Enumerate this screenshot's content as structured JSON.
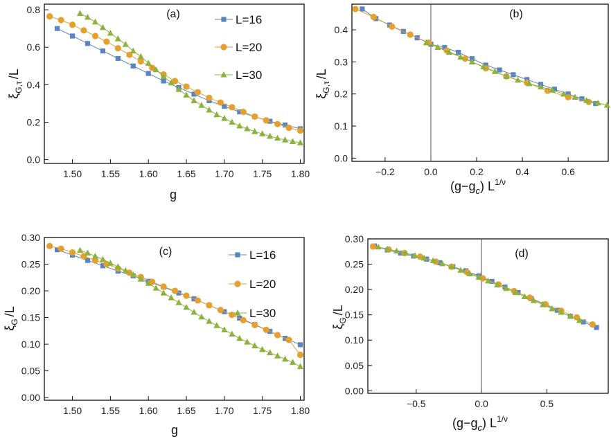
{
  "colors": {
    "L16": "#5b84c4",
    "L20": "#e6a030",
    "L30": "#8db33e",
    "frame": "#111111"
  },
  "chart_data": [
    {
      "panel": "(a)",
      "type": "scatter",
      "xlabel": "g",
      "ylabel": "ξG,τ /L",
      "ylabel_main": "ξ",
      "ylabel_sub": "G,τ",
      "ylabel_tail": "/L",
      "xlim": [
        1.463,
        1.805
      ],
      "ylim": [
        -0.02,
        0.83
      ],
      "xticks": [
        1.5,
        1.55,
        1.6,
        1.65,
        1.7,
        1.75,
        1.8
      ],
      "xtick_labels": [
        "1.50",
        "1.55",
        "1.60",
        "1.65",
        "1.70",
        "1.75",
        "1.80"
      ],
      "yticks": [
        0.0,
        0.2,
        0.4,
        0.6,
        0.8
      ],
      "ytick_labels": [
        "0.0",
        "0.2",
        "0.4",
        "0.6",
        "0.8"
      ],
      "legend": "top-right",
      "series": [
        {
          "name": "L=16",
          "marker": "square",
          "color": "#5b84c4",
          "x": [
            1.48,
            1.5,
            1.52,
            1.54,
            1.56,
            1.58,
            1.6,
            1.62,
            1.64,
            1.66,
            1.68,
            1.7,
            1.72,
            1.74,
            1.76,
            1.78,
            1.8
          ],
          "y": [
            0.7,
            0.66,
            0.62,
            0.58,
            0.54,
            0.5,
            0.46,
            0.42,
            0.385,
            0.35,
            0.315,
            0.285,
            0.255,
            0.23,
            0.205,
            0.185,
            0.165
          ]
        },
        {
          "name": "L=20",
          "marker": "circle",
          "color": "#e6a030",
          "x": [
            1.47,
            1.485,
            1.5,
            1.515,
            1.53,
            1.545,
            1.56,
            1.575,
            1.59,
            1.605,
            1.62,
            1.635,
            1.65,
            1.665,
            1.68,
            1.695,
            1.71,
            1.725,
            1.74,
            1.755,
            1.77,
            1.785,
            1.8
          ],
          "y": [
            0.765,
            0.745,
            0.72,
            0.69,
            0.66,
            0.63,
            0.595,
            0.56,
            0.525,
            0.49,
            0.455,
            0.42,
            0.39,
            0.36,
            0.33,
            0.305,
            0.28,
            0.255,
            0.23,
            0.21,
            0.19,
            0.17,
            0.155
          ]
        },
        {
          "name": "L=30",
          "marker": "triangle",
          "color": "#8db33e",
          "x": [
            1.51,
            1.52,
            1.53,
            1.54,
            1.55,
            1.56,
            1.57,
            1.58,
            1.59,
            1.6,
            1.61,
            1.62,
            1.63,
            1.64,
            1.65,
            1.66,
            1.67,
            1.68,
            1.69,
            1.7,
            1.71,
            1.72,
            1.73,
            1.74,
            1.75,
            1.76,
            1.77,
            1.78,
            1.79,
            1.8
          ],
          "y": [
            0.78,
            0.76,
            0.735,
            0.705,
            0.675,
            0.645,
            0.615,
            0.58,
            0.55,
            0.515,
            0.48,
            0.445,
            0.41,
            0.375,
            0.345,
            0.315,
            0.29,
            0.265,
            0.24,
            0.22,
            0.2,
            0.18,
            0.165,
            0.15,
            0.138,
            0.125,
            0.115,
            0.105,
            0.097,
            0.09
          ]
        }
      ]
    },
    {
      "panel": "(b)",
      "type": "scatter",
      "xlabel": "(g−gc) L1/ν",
      "xlabel_pre": "(g−g",
      "xlabel_sub": "c",
      "xlabel_mid": ") L",
      "xlabel_sup": "1/ν",
      "ylabel": "ξG,τ /L",
      "ylabel_main": "ξ",
      "ylabel_sub": "G,τ",
      "ylabel_tail": "/L",
      "xlim": [
        -0.345,
        0.775
      ],
      "ylim": [
        -0.01,
        0.48
      ],
      "vline": 0.0,
      "xticks": [
        -0.2,
        0.0,
        0.2,
        0.4,
        0.6
      ],
      "xtick_labels": [
        "−0.2",
        "0.0",
        "0.2",
        "0.4",
        "0.6"
      ],
      "yticks": [
        0.0,
        0.1,
        0.2,
        0.3,
        0.4
      ],
      "ytick_labels": [
        "0.0",
        "0.1",
        "0.2",
        "0.3",
        "0.4"
      ],
      "series": [
        {
          "name": "L=16",
          "marker": "square",
          "color": "#5b84c4",
          "x": [
            -0.3,
            -0.24,
            -0.18,
            -0.12,
            -0.06,
            0.0,
            0.06,
            0.12,
            0.18,
            0.24,
            0.3,
            0.36,
            0.42,
            0.48,
            0.54,
            0.6,
            0.66,
            0.72
          ],
          "y": [
            0.465,
            0.435,
            0.415,
            0.395,
            0.375,
            0.355,
            0.345,
            0.33,
            0.31,
            0.29,
            0.275,
            0.26,
            0.245,
            0.23,
            0.215,
            0.2,
            0.185,
            0.17
          ]
        },
        {
          "name": "L=20",
          "marker": "circle",
          "color": "#e6a030",
          "x": [
            -0.33,
            -0.25,
            -0.17,
            -0.09,
            -0.01,
            0.07,
            0.15,
            0.24,
            0.33,
            0.42,
            0.51,
            0.6,
            0.69
          ],
          "y": [
            0.465,
            0.44,
            0.41,
            0.385,
            0.36,
            0.335,
            0.31,
            0.28,
            0.255,
            0.235,
            0.21,
            0.19,
            0.175
          ]
        },
        {
          "name": "L=30",
          "marker": "triangle",
          "color": "#8db33e",
          "x": [
            -0.02,
            0.03,
            0.08,
            0.13,
            0.18,
            0.23,
            0.28,
            0.33,
            0.38,
            0.43,
            0.48,
            0.53,
            0.58,
            0.63,
            0.68,
            0.73,
            0.77
          ],
          "y": [
            0.36,
            0.345,
            0.33,
            0.315,
            0.3,
            0.285,
            0.27,
            0.255,
            0.243,
            0.232,
            0.222,
            0.212,
            0.2,
            0.19,
            0.18,
            0.172,
            0.165
          ]
        }
      ]
    },
    {
      "panel": "(c)",
      "type": "scatter",
      "xlabel": "g",
      "ylabel": "ξG /L",
      "ylabel_main": "ξ",
      "ylabel_sub": "G",
      "ylabel_tail": "/L",
      "xlim": [
        1.463,
        1.805
      ],
      "ylim": [
        -0.005,
        0.3
      ],
      "xticks": [
        1.5,
        1.55,
        1.6,
        1.65,
        1.7,
        1.75,
        1.8
      ],
      "xtick_labels": [
        "1.50",
        "1.55",
        "1.60",
        "1.65",
        "1.70",
        "1.75",
        "1.80"
      ],
      "yticks": [
        0.0,
        0.05,
        0.1,
        0.15,
        0.2,
        0.25,
        0.3
      ],
      "ytick_labels": [
        "0.00",
        "0.05",
        "0.10",
        "0.15",
        "0.20",
        "0.25",
        "0.30"
      ],
      "legend": "top-right",
      "series": [
        {
          "name": "L=16",
          "marker": "square",
          "color": "#5b84c4",
          "x": [
            1.48,
            1.5,
            1.52,
            1.54,
            1.56,
            1.58,
            1.6,
            1.62,
            1.64,
            1.66,
            1.68,
            1.7,
            1.72,
            1.74,
            1.76,
            1.78,
            1.8
          ],
          "y": [
            0.277,
            0.267,
            0.257,
            0.247,
            0.237,
            0.228,
            0.218,
            0.207,
            0.196,
            0.185,
            0.173,
            0.161,
            0.149,
            0.137,
            0.124,
            0.111,
            0.099
          ]
        },
        {
          "name": "L=20",
          "marker": "circle",
          "color": "#e6a030",
          "x": [
            1.47,
            1.485,
            1.5,
            1.515,
            1.53,
            1.545,
            1.56,
            1.575,
            1.59,
            1.605,
            1.62,
            1.635,
            1.65,
            1.665,
            1.68,
            1.695,
            1.71,
            1.725,
            1.74,
            1.755,
            1.77,
            1.785,
            1.8
          ],
          "y": [
            0.284,
            0.279,
            0.272,
            0.265,
            0.257,
            0.25,
            0.242,
            0.234,
            0.226,
            0.217,
            0.208,
            0.2,
            0.191,
            0.182,
            0.173,
            0.164,
            0.155,
            0.145,
            0.136,
            0.127,
            0.117,
            0.108,
            0.08
          ]
        },
        {
          "name": "L=30",
          "marker": "triangle",
          "color": "#8db33e",
          "x": [
            1.51,
            1.52,
            1.53,
            1.54,
            1.55,
            1.56,
            1.57,
            1.58,
            1.59,
            1.6,
            1.61,
            1.62,
            1.63,
            1.64,
            1.65,
            1.66,
            1.67,
            1.68,
            1.69,
            1.7,
            1.71,
            1.72,
            1.73,
            1.74,
            1.75,
            1.76,
            1.77,
            1.78,
            1.79,
            1.8
          ],
          "y": [
            0.276,
            0.271,
            0.265,
            0.259,
            0.252,
            0.245,
            0.238,
            0.23,
            0.222,
            0.214,
            0.205,
            0.196,
            0.187,
            0.178,
            0.169,
            0.16,
            0.151,
            0.143,
            0.135,
            0.127,
            0.119,
            0.111,
            0.104,
            0.097,
            0.09,
            0.084,
            0.078,
            0.072,
            0.066,
            0.058
          ]
        }
      ]
    },
    {
      "panel": "(d)",
      "type": "scatter",
      "xlabel": "(g−gc) L1/ν",
      "xlabel_pre": "(g−g",
      "xlabel_sub": "c",
      "xlabel_mid": ") L",
      "xlabel_sup": "1/ν",
      "ylabel": "ξG /L",
      "ylabel_main": "ξ",
      "ylabel_sub": "G",
      "ylabel_tail": "/L",
      "xlim": [
        -0.87,
        0.97
      ],
      "ylim": [
        -0.005,
        0.3
      ],
      "vline": 0.0,
      "xticks": [
        -0.5,
        0.0,
        0.5
      ],
      "xtick_labels": [
        "−0.5",
        "0.0",
        "0.5"
      ],
      "yticks": [
        0.0,
        0.05,
        0.1,
        0.15,
        0.2,
        0.25,
        0.3
      ],
      "ytick_labels": [
        "0.00",
        "0.05",
        "0.10",
        "0.15",
        "0.20",
        "0.25",
        "0.30"
      ],
      "series": [
        {
          "name": "L=16",
          "marker": "square",
          "color": "#5b84c4",
          "x": [
            -0.82,
            -0.72,
            -0.62,
            -0.52,
            -0.42,
            -0.32,
            -0.22,
            -0.12,
            -0.02,
            0.08,
            0.18,
            0.28,
            0.38,
            0.48,
            0.58,
            0.68,
            0.78,
            0.88
          ],
          "y": [
            0.286,
            0.278,
            0.272,
            0.266,
            0.26,
            0.253,
            0.245,
            0.237,
            0.227,
            0.216,
            0.205,
            0.194,
            0.182,
            0.171,
            0.159,
            0.147,
            0.136,
            0.125
          ]
        },
        {
          "name": "L=20",
          "marker": "circle",
          "color": "#e6a030",
          "x": [
            -0.83,
            -0.71,
            -0.59,
            -0.47,
            -0.35,
            -0.23,
            -0.11,
            0.01,
            0.13,
            0.25,
            0.37,
            0.49,
            0.61,
            0.73,
            0.85
          ],
          "y": [
            0.285,
            0.279,
            0.272,
            0.265,
            0.255,
            0.245,
            0.234,
            0.222,
            0.21,
            0.197,
            0.184,
            0.171,
            0.158,
            0.145,
            0.131
          ]
        },
        {
          "name": "L=30",
          "marker": "triangle",
          "color": "#8db33e",
          "x": [
            -0.79,
            -0.72,
            -0.65,
            -0.58,
            -0.51,
            -0.44,
            -0.37,
            -0.3,
            -0.23,
            -0.16,
            -0.09,
            -0.02,
            0.05,
            0.12,
            0.19,
            0.26,
            0.33,
            0.4,
            0.47,
            0.54,
            0.61,
            0.68,
            0.75
          ],
          "y": [
            0.284,
            0.28,
            0.276,
            0.272,
            0.267,
            0.262,
            0.257,
            0.251,
            0.245,
            0.238,
            0.231,
            0.224,
            0.217,
            0.209,
            0.202,
            0.194,
            0.186,
            0.178,
            0.17,
            0.162,
            0.155,
            0.147,
            0.139
          ]
        }
      ]
    }
  ]
}
